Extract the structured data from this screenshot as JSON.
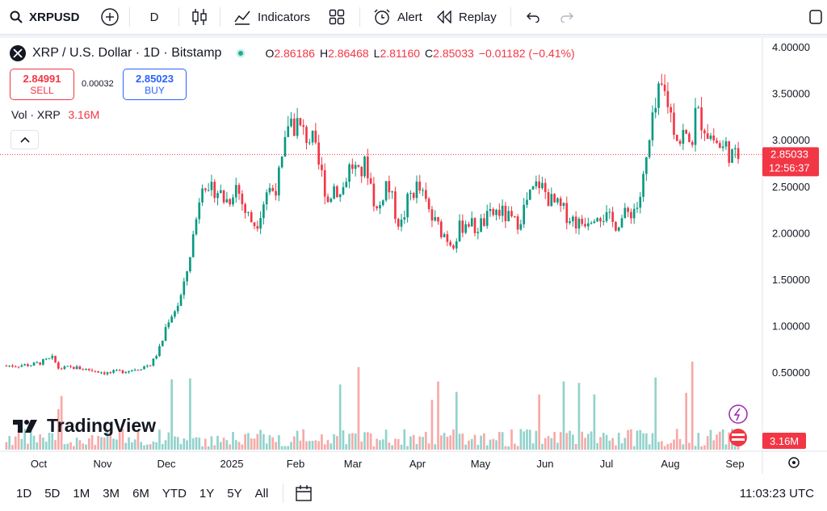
{
  "toolbar": {
    "symbol": "XRPUSD",
    "interval": "D",
    "indicators_label": "Indicators",
    "alert_label": "Alert",
    "replay_label": "Replay"
  },
  "legend": {
    "title": "XRP / U.S. Dollar · 1D · Bitstamp",
    "open_label": "O",
    "open": "2.86186",
    "high_label": "H",
    "high": "2.86468",
    "low_label": "L",
    "low": "2.81160",
    "close_label": "C",
    "close": "2.85033",
    "change": "−0.01182 (−0.41%)"
  },
  "trade": {
    "sell_price": "2.84991",
    "sell_label": "SELL",
    "spread": "0.00032",
    "buy_price": "2.85023",
    "buy_label": "BUY"
  },
  "volume_legend": {
    "label": "Vol · XRP",
    "value": "3.16M"
  },
  "price_badge": {
    "price": "2.85033",
    "countdown": "12:56:37"
  },
  "volume_badge": "3.16M",
  "brand": "TradingView",
  "colors": {
    "up": "#089981",
    "down": "#f23645",
    "up_volume": "#92d2cc",
    "down_volume": "#f7a9a7",
    "accent": "#2962ff"
  },
  "bottom": {
    "ranges": [
      "1D",
      "5D",
      "1M",
      "3M",
      "6M",
      "YTD",
      "1Y",
      "5Y",
      "All"
    ],
    "clock": "11:03:23 UTC"
  },
  "chart_data": {
    "type": "candlestick",
    "title": "XRP / U.S. Dollar · 1D · Bitstamp",
    "ylim": [
      0.05,
      4.0
    ],
    "y_ticks": [
      "4.00000",
      "3.50000",
      "3.00000",
      "2.50000",
      "2.00000",
      "1.50000",
      "1.00000",
      "0.50000"
    ],
    "x_ticks": [
      "Oct",
      "Nov",
      "Dec",
      "2025",
      "Feb",
      "Mar",
      "Apr",
      "May",
      "Jun",
      "Jul",
      "Aug",
      "Sep"
    ],
    "last_price": 2.85033,
    "series": [
      {
        "name": "Price",
        "values": [
          [
            0,
            0.58
          ],
          [
            14,
            0.59
          ],
          [
            20,
            0.63
          ],
          [
            24,
            0.66
          ],
          [
            27,
            0.55
          ],
          [
            35,
            0.56
          ],
          [
            45,
            0.53
          ],
          [
            52,
            0.5
          ],
          [
            60,
            0.52
          ],
          [
            68,
            0.55
          ],
          [
            75,
            0.6
          ],
          [
            80,
            0.8
          ],
          [
            83,
            1.05
          ],
          [
            86,
            1.15
          ],
          [
            89,
            1.25
          ],
          [
            92,
            1.45
          ],
          [
            95,
            1.8
          ],
          [
            98,
            2.15
          ],
          [
            100,
            2.45
          ],
          [
            102,
            2.7
          ],
          [
            104,
            2.35
          ],
          [
            107,
            2.5
          ],
          [
            110,
            2.45
          ],
          [
            113,
            2.35
          ],
          [
            116,
            2.4
          ],
          [
            118,
            2.55
          ],
          [
            120,
            2.45
          ],
          [
            123,
            2.25
          ],
          [
            126,
            2.15
          ],
          [
            129,
            2.1
          ],
          [
            132,
            2.3
          ],
          [
            135,
            2.5
          ],
          [
            137,
            2.45
          ],
          [
            140,
            2.55
          ],
          [
            142,
            2.7
          ],
          [
            144,
            2.95
          ],
          [
            146,
            3.3
          ],
          [
            148,
            3.15
          ],
          [
            150,
            3.2
          ],
          [
            152,
            3.1
          ],
          [
            155,
            3.05
          ],
          [
            158,
            3.0
          ],
          [
            161,
            2.75
          ],
          [
            164,
            2.55
          ],
          [
            166,
            2.35
          ],
          [
            168,
            2.45
          ],
          [
            170,
            2.55
          ],
          [
            172,
            2.4
          ],
          [
            174,
            2.5
          ],
          [
            176,
            2.65
          ],
          [
            178,
            2.75
          ],
          [
            180,
            2.7
          ],
          [
            182,
            2.6
          ],
          [
            184,
            2.7
          ],
          [
            186,
            2.75
          ],
          [
            188,
            2.55
          ],
          [
            190,
            2.35
          ],
          [
            192,
            2.2
          ],
          [
            194,
            2.4
          ],
          [
            196,
            2.55
          ],
          [
            198,
            2.45
          ],
          [
            200,
            2.3
          ],
          [
            202,
            2.15
          ],
          [
            204,
            2.1
          ],
          [
            206,
            2.25
          ],
          [
            208,
            2.4
          ],
          [
            210,
            2.45
          ],
          [
            212,
            2.5
          ],
          [
            214,
            2.45
          ],
          [
            216,
            2.35
          ],
          [
            218,
            2.25
          ],
          [
            220,
            2.15
          ],
          [
            222,
            2.1
          ],
          [
            224,
            2.05
          ],
          [
            226,
            2.0
          ],
          [
            228,
            1.95
          ],
          [
            230,
            1.9
          ],
          [
            232,
            1.95
          ],
          [
            234,
            2.05
          ],
          [
            236,
            2.1
          ],
          [
            238,
            2.15
          ],
          [
            240,
            2.1
          ],
          [
            242,
            2.05
          ],
          [
            245,
            2.1
          ],
          [
            248,
            2.15
          ],
          [
            251,
            2.2
          ],
          [
            254,
            2.25
          ],
          [
            257,
            2.2
          ],
          [
            260,
            2.15
          ],
          [
            263,
            2.1
          ],
          [
            266,
            2.2
          ],
          [
            269,
            2.35
          ],
          [
            272,
            2.45
          ],
          [
            275,
            2.55
          ],
          [
            278,
            2.45
          ],
          [
            281,
            2.35
          ],
          [
            284,
            2.3
          ],
          [
            287,
            2.25
          ],
          [
            290,
            2.2
          ],
          [
            293,
            2.15
          ],
          [
            296,
            2.1
          ],
          [
            299,
            2.15
          ],
          [
            302,
            2.2
          ],
          [
            305,
            2.25
          ],
          [
            308,
            2.2
          ],
          [
            311,
            2.15
          ],
          [
            314,
            2.1
          ],
          [
            317,
            2.15
          ],
          [
            320,
            2.2
          ],
          [
            323,
            2.25
          ],
          [
            326,
            2.3
          ],
          [
            328,
            2.45
          ],
          [
            330,
            2.7
          ],
          [
            332,
            2.95
          ],
          [
            334,
            3.2
          ],
          [
            336,
            3.4
          ],
          [
            338,
            3.55
          ],
          [
            340,
            3.5
          ],
          [
            342,
            3.4
          ],
          [
            344,
            3.2
          ],
          [
            346,
            3.1
          ],
          [
            348,
            3.0
          ],
          [
            350,
            3.1
          ],
          [
            352,
            2.95
          ],
          [
            354,
            3.0
          ],
          [
            356,
            3.3
          ],
          [
            358,
            3.25
          ],
          [
            360,
            3.2
          ],
          [
            362,
            3.1
          ],
          [
            364,
            3.05
          ],
          [
            366,
            3.0
          ],
          [
            368,
            2.95
          ],
          [
            370,
            2.9
          ],
          [
            372,
            2.95
          ],
          [
            374,
            2.85
          ],
          [
            376,
            2.8
          ],
          [
            378,
            2.85
          ]
        ]
      }
    ],
    "volume_last": "3.16M"
  }
}
